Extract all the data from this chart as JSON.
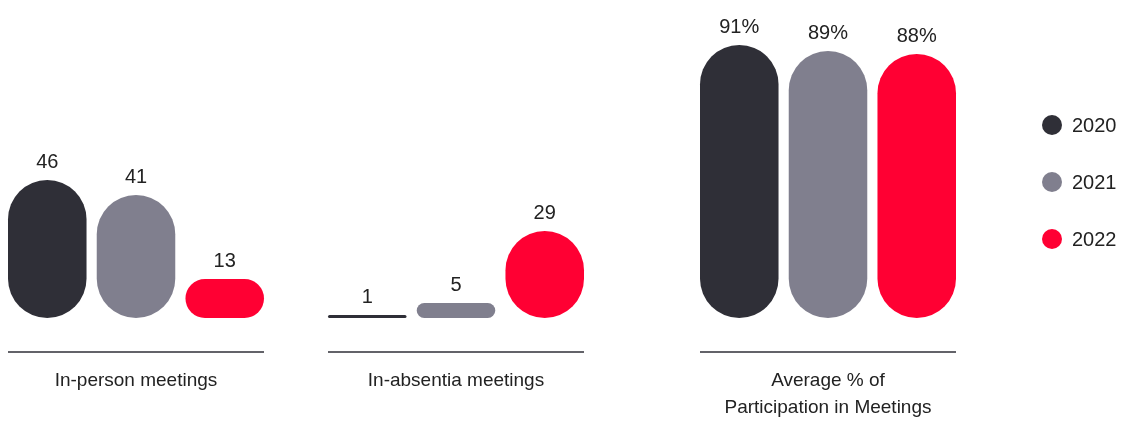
{
  "chart_data": [
    {
      "type": "bar",
      "xlabel": "In-person meetings",
      "categories": [
        null
      ],
      "data_labels": true,
      "legend": false,
      "series": [
        {
          "color": "#2f2f37",
          "values": [
            46
          ]
        },
        {
          "color": "#807f8e",
          "values": [
            41
          ]
        },
        {
          "color": "#ff0033",
          "values": [
            13
          ]
        }
      ]
    },
    {
      "type": "bar",
      "xlabel": "In-absentia meetings",
      "categories": [
        null
      ],
      "data_labels": true,
      "legend": false,
      "series": [
        {
          "color": "#2f2f37",
          "values": [
            1
          ]
        },
        {
          "color": "#807f8e",
          "values": [
            5
          ]
        },
        {
          "color": "#ff0033",
          "values": [
            29
          ]
        }
      ]
    },
    {
      "type": "bar",
      "xlabel": "Average % of Participation in Meetings",
      "categories": [
        null
      ],
      "legend": "right",
      "series": [
        {
          "name": "2020",
          "color": "#2f2f37",
          "values": [
            91
          ],
          "value_labels": [
            "91%"
          ]
        },
        {
          "name": "2021",
          "color": "#807f8e",
          "values": [
            89
          ],
          "value_labels": [
            "89%"
          ]
        },
        {
          "name": "2022",
          "color": "#ff0033",
          "values": [
            88
          ],
          "value_labels": [
            "88%"
          ]
        }
      ]
    }
  ]
}
